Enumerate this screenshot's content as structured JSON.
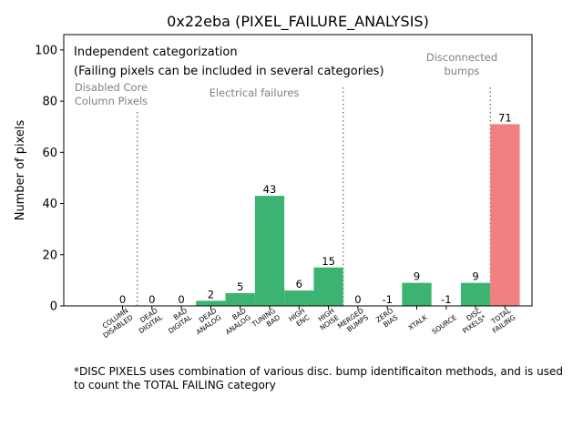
{
  "chart_data": {
    "type": "bar",
    "title": "0x22eba (PIXEL_FAILURE_ANALYSIS)",
    "ylabel": "Number of pixels",
    "xlabel": "",
    "ylim": [
      0,
      106
    ],
    "yticks": [
      0,
      20,
      40,
      60,
      80,
      100
    ],
    "grid": false,
    "categories": [
      "COLUMN\nDISABLED",
      "DEAD\nDIGITAL",
      "BAD\nDIGITAL",
      "DEAD\nANALOG",
      "BAD\nANALOG",
      "TUNING\nBAD",
      "HIGH\nENC",
      "HIGH\nNOISE",
      "MERGED\nBUMPS",
      "ZERO\nBIAS",
      "XTALK",
      "SOURCE",
      "DISC\nPIXELS*",
      "TOTAL\nFAILING"
    ],
    "values": [
      0,
      0,
      0,
      2,
      5,
      43,
      6,
      15,
      0,
      -1,
      9,
      -1,
      9,
      71
    ],
    "value_labels": [
      "0",
      "0",
      "0",
      "2",
      "5",
      "43",
      "6",
      "15",
      "0",
      "-1",
      "9",
      "-1",
      "9",
      "71"
    ],
    "bar_colors": [
      "#3cb371",
      "#3cb371",
      "#3cb371",
      "#3cb371",
      "#3cb371",
      "#3cb371",
      "#3cb371",
      "#3cb371",
      "#3cb371",
      "#3cb371",
      "#3cb371",
      "#3cb371",
      "#3cb371",
      "#f08080"
    ],
    "separators_after_index": [
      0,
      7,
      12
    ],
    "annotations": {
      "info_line1": "Independent categorization",
      "info_line2": "(Failing pixels can be included in several categories)",
      "group_disabled": "Disabled Core\nColumn Pixels",
      "group_electrical": "Electrical failures",
      "group_disconnected": "Disconnected\nbumps"
    },
    "colors": {
      "bar": "#3cb371",
      "total_bar": "#f08080",
      "annotation_grey": "#808080",
      "separator": "#808080"
    }
  },
  "footnote": "*DISC PIXELS uses combination of various disc. bump identificaiton methods, and is used to count the TOTAL FAILING category"
}
